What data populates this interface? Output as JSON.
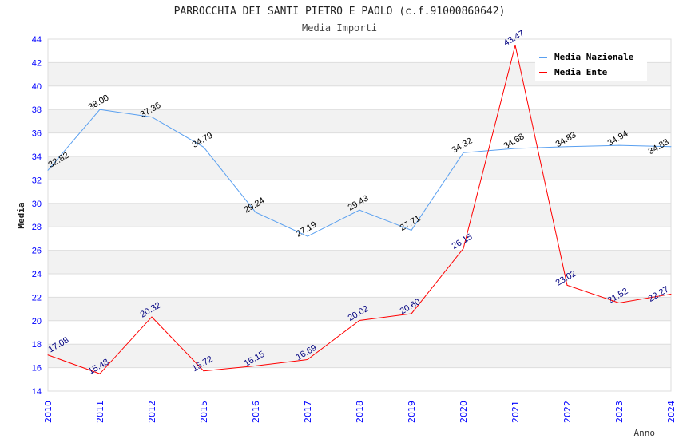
{
  "chart_data": {
    "type": "line",
    "title": "PARROCCHIA DEI SANTI PIETRO E PAOLO (c.f.91000860642)",
    "subtitle": "Media Importi",
    "xlabel": "Anno",
    "ylabel": "Media",
    "ylim": [
      14,
      44
    ],
    "yticks": [
      14,
      16,
      18,
      20,
      22,
      24,
      26,
      28,
      30,
      32,
      34,
      36,
      38,
      40,
      42,
      44
    ],
    "categories": [
      "2010",
      "2011",
      "2012",
      "2015",
      "2016",
      "2017",
      "2018",
      "2019",
      "2020",
      "2021",
      "2022",
      "2023",
      "2024"
    ],
    "series": [
      {
        "name": "Media Nazionale",
        "color": "#5aa0f0",
        "label_color": "#000000",
        "values": [
          32.82,
          38.0,
          37.36,
          34.79,
          29.24,
          27.19,
          29.43,
          27.71,
          34.32,
          34.68,
          34.83,
          34.94,
          34.83
        ]
      },
      {
        "name": "Media Ente",
        "color": "#ff0000",
        "label_color": "#000080",
        "values": [
          17.08,
          15.48,
          20.32,
          15.72,
          16.15,
          16.69,
          20.02,
          20.6,
          26.15,
          43.47,
          23.02,
          21.52,
          22.27
        ]
      }
    ],
    "grid": true,
    "legend": "top-right"
  }
}
